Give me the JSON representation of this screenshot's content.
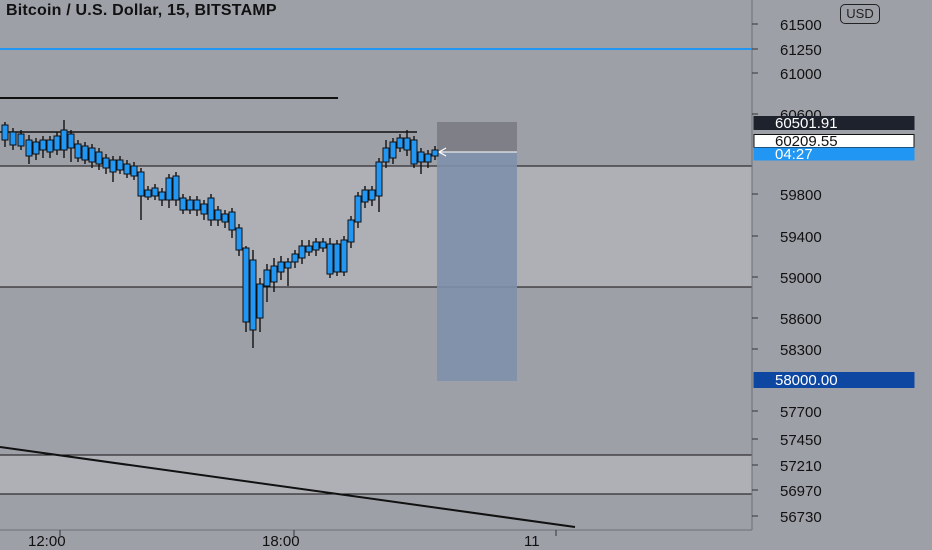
{
  "header": {
    "title": "Bitcoin / U.S. Dollar, 15, BITSTAMP",
    "currency_button": "USD"
  },
  "price_axis": {
    "ticks": [
      "61500",
      "61250",
      "61000",
      "60600",
      "59800",
      "59400",
      "59000",
      "58600",
      "58300",
      "57700",
      "57450",
      "57210",
      "56970",
      "56730"
    ],
    "labels": [
      {
        "text": "60501.91",
        "bg": "#1e222d",
        "fg": "#ffffff",
        "border": "#1e222d"
      },
      {
        "text": "60209.55",
        "bg": "#ffffff",
        "fg": "#111111",
        "border": "#111111"
      },
      {
        "text": "04:27",
        "bg": "#2196f3",
        "fg": "#ffffff",
        "border": "#2196f3"
      },
      {
        "text": "58000.00",
        "bg": "#0d47a1",
        "fg": "#ffffff",
        "border": "#0d47a1"
      }
    ]
  },
  "time_axis": {
    "ticks": [
      "12:00",
      "18:00",
      "11"
    ]
  },
  "colors": {
    "background": "#9ea0a8",
    "zone_fill": "#aeb0b6",
    "candle_body": "#2196f3",
    "candle_wick": "#111111",
    "horizontal_ray": "#2196f3",
    "projection_box": "#7e90aa"
  }
}
